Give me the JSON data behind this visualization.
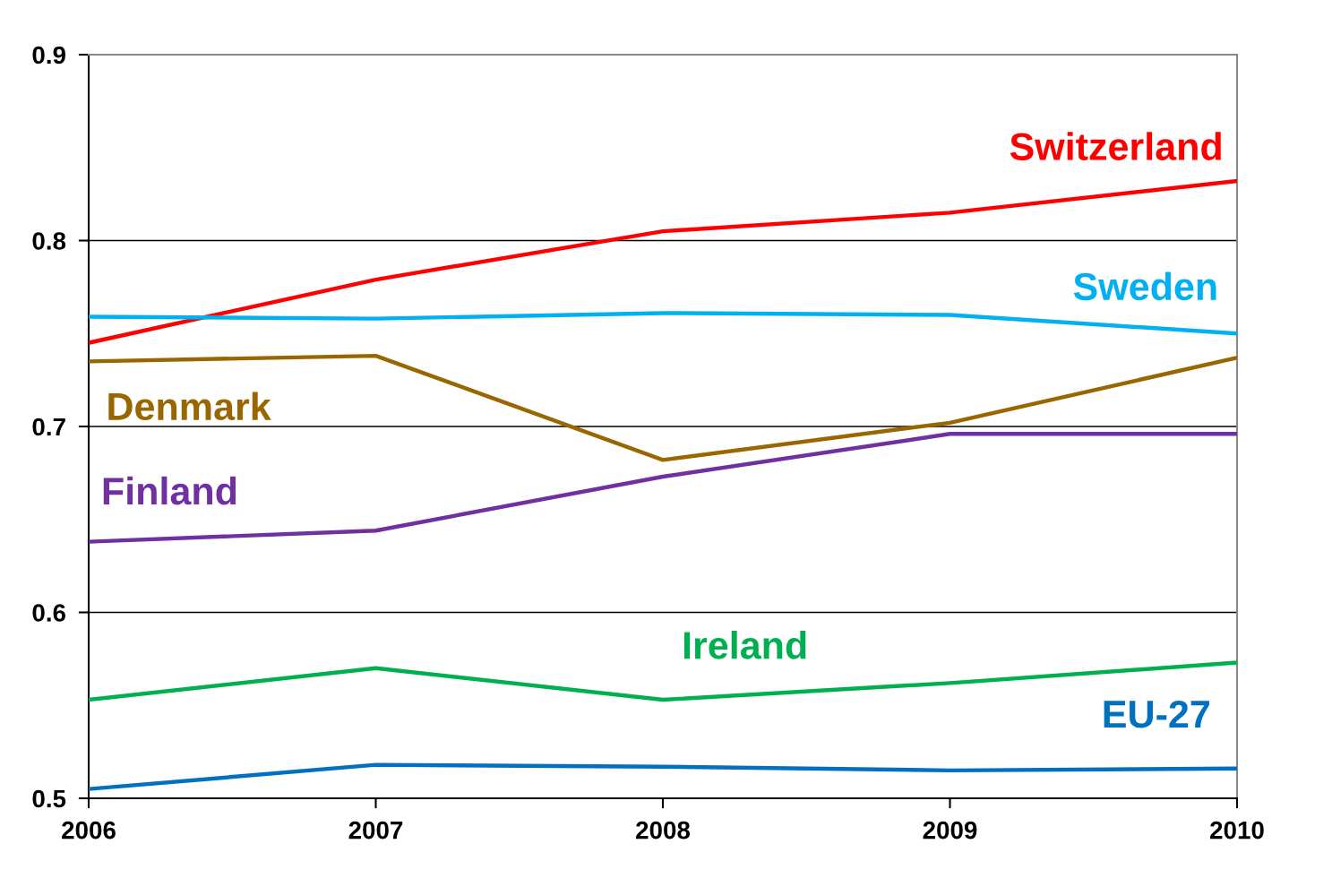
{
  "chart_data": {
    "type": "line",
    "x": [
      2006,
      2007,
      2008,
      2009,
      2010
    ],
    "xlim": [
      2006,
      2010
    ],
    "xticks": [
      2006,
      2007,
      2008,
      2009,
      2010
    ],
    "ylim": [
      0.5,
      0.9
    ],
    "yticks": [
      0.5,
      0.6,
      0.7,
      0.8,
      0.9
    ],
    "grid": "y",
    "legend": false,
    "marker": "none",
    "line_style": "solid",
    "series": [
      {
        "name": "Switzerland",
        "color": "#ff0000",
        "values": [
          0.745,
          0.779,
          0.805,
          0.815,
          0.832
        ]
      },
      {
        "name": "Sweden",
        "color": "#00b0f0",
        "values": [
          0.759,
          0.758,
          0.761,
          0.76,
          0.75
        ]
      },
      {
        "name": "Denmark",
        "color": "#996600",
        "values": [
          0.735,
          0.738,
          0.682,
          0.702,
          0.737
        ]
      },
      {
        "name": "Finland",
        "color": "#7030a0",
        "values": [
          0.638,
          0.644,
          0.673,
          0.696,
          0.696
        ]
      },
      {
        "name": "Ireland",
        "color": "#00b050",
        "values": [
          0.553,
          0.57,
          0.553,
          0.562,
          0.573
        ]
      },
      {
        "name": "EU-27",
        "color": "#0070c0",
        "values": [
          0.505,
          0.518,
          0.517,
          0.515,
          0.516
        ]
      }
    ]
  }
}
